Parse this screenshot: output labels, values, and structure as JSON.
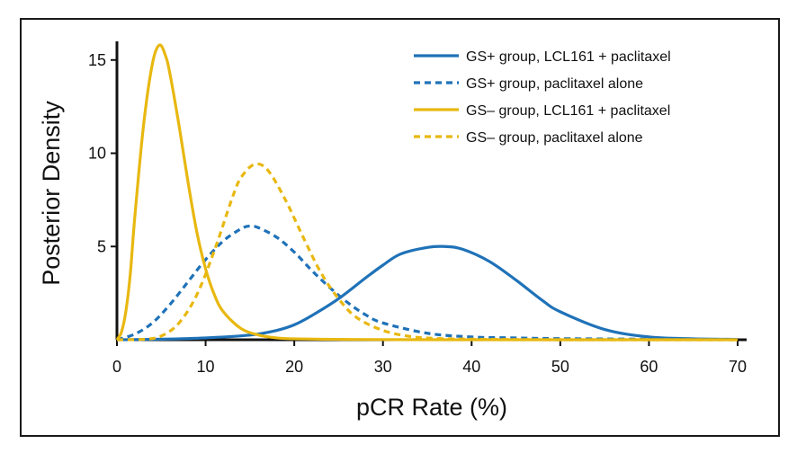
{
  "chart_data": {
    "type": "line",
    "title": "",
    "xlabel": "pCR Rate (%)",
    "ylabel": "Posterior Density",
    "xlim": [
      0,
      70
    ],
    "ylim": [
      0,
      16
    ],
    "xticks": [
      0,
      10,
      20,
      30,
      40,
      50,
      60,
      70
    ],
    "yticks": [
      5,
      10,
      15
    ],
    "grid": false,
    "legend_position": "top-right",
    "series": [
      {
        "name": "GS+ group, LCL161 + paclitaxel",
        "color": "#1f72b8",
        "style": "solid",
        "x": [
          0,
          5,
          10,
          15,
          18,
          20,
          22,
          25,
          28,
          30,
          32,
          35,
          37,
          39,
          42,
          45,
          48,
          50,
          55,
          60,
          65,
          70
        ],
        "y": [
          0,
          0.03,
          0.1,
          0.25,
          0.5,
          0.8,
          1.3,
          2.2,
          3.3,
          4.0,
          4.6,
          4.95,
          5.0,
          4.85,
          4.2,
          3.2,
          2.1,
          1.5,
          0.55,
          0.15,
          0.05,
          0.02
        ]
      },
      {
        "name": "GS+ group, paclitaxel alone",
        "color": "#1f72b8",
        "style": "dashed",
        "x": [
          0,
          2,
          4,
          6,
          8,
          10,
          12,
          14,
          15,
          16,
          18,
          20,
          22,
          24,
          26,
          28,
          30,
          35,
          40,
          45,
          50,
          60,
          70
        ],
        "y": [
          0,
          0.3,
          0.9,
          1.9,
          3.1,
          4.3,
          5.3,
          5.95,
          6.1,
          6.0,
          5.5,
          4.7,
          3.7,
          2.8,
          2.0,
          1.35,
          0.9,
          0.35,
          0.15,
          0.1,
          0.06,
          0.03,
          0.01
        ]
      },
      {
        "name": "GS– group, LCL161 + paclitaxel",
        "color": "#e8b811",
        "style": "solid",
        "x": [
          0,
          0.5,
          1,
          1.5,
          2,
          3,
          4,
          4.8,
          5.5,
          6,
          7,
          8,
          9,
          10,
          11,
          12,
          14,
          16,
          18,
          20,
          25,
          30,
          40,
          70
        ],
        "y": [
          0,
          0.4,
          1.5,
          3.5,
          6.5,
          11.5,
          14.8,
          15.8,
          15.2,
          14.2,
          11.5,
          8.5,
          5.8,
          3.8,
          2.4,
          1.5,
          0.6,
          0.25,
          0.1,
          0.05,
          0.02,
          0.01,
          0,
          0
        ]
      },
      {
        "name": "GS– group, paclitaxel alone",
        "color": "#e8b811",
        "style": "dashed",
        "x": [
          0,
          3,
          5,
          7,
          9,
          11,
          13,
          14,
          15.5,
          17,
          19,
          21,
          23,
          25,
          27,
          30,
          33,
          36,
          40,
          45,
          50,
          60,
          70
        ],
        "y": [
          0,
          0.02,
          0.2,
          0.9,
          2.4,
          4.8,
          7.6,
          8.7,
          9.4,
          9.1,
          7.5,
          5.5,
          3.6,
          2.2,
          1.2,
          0.5,
          0.18,
          0.07,
          0.03,
          0.01,
          0,
          0,
          0
        ]
      }
    ]
  }
}
